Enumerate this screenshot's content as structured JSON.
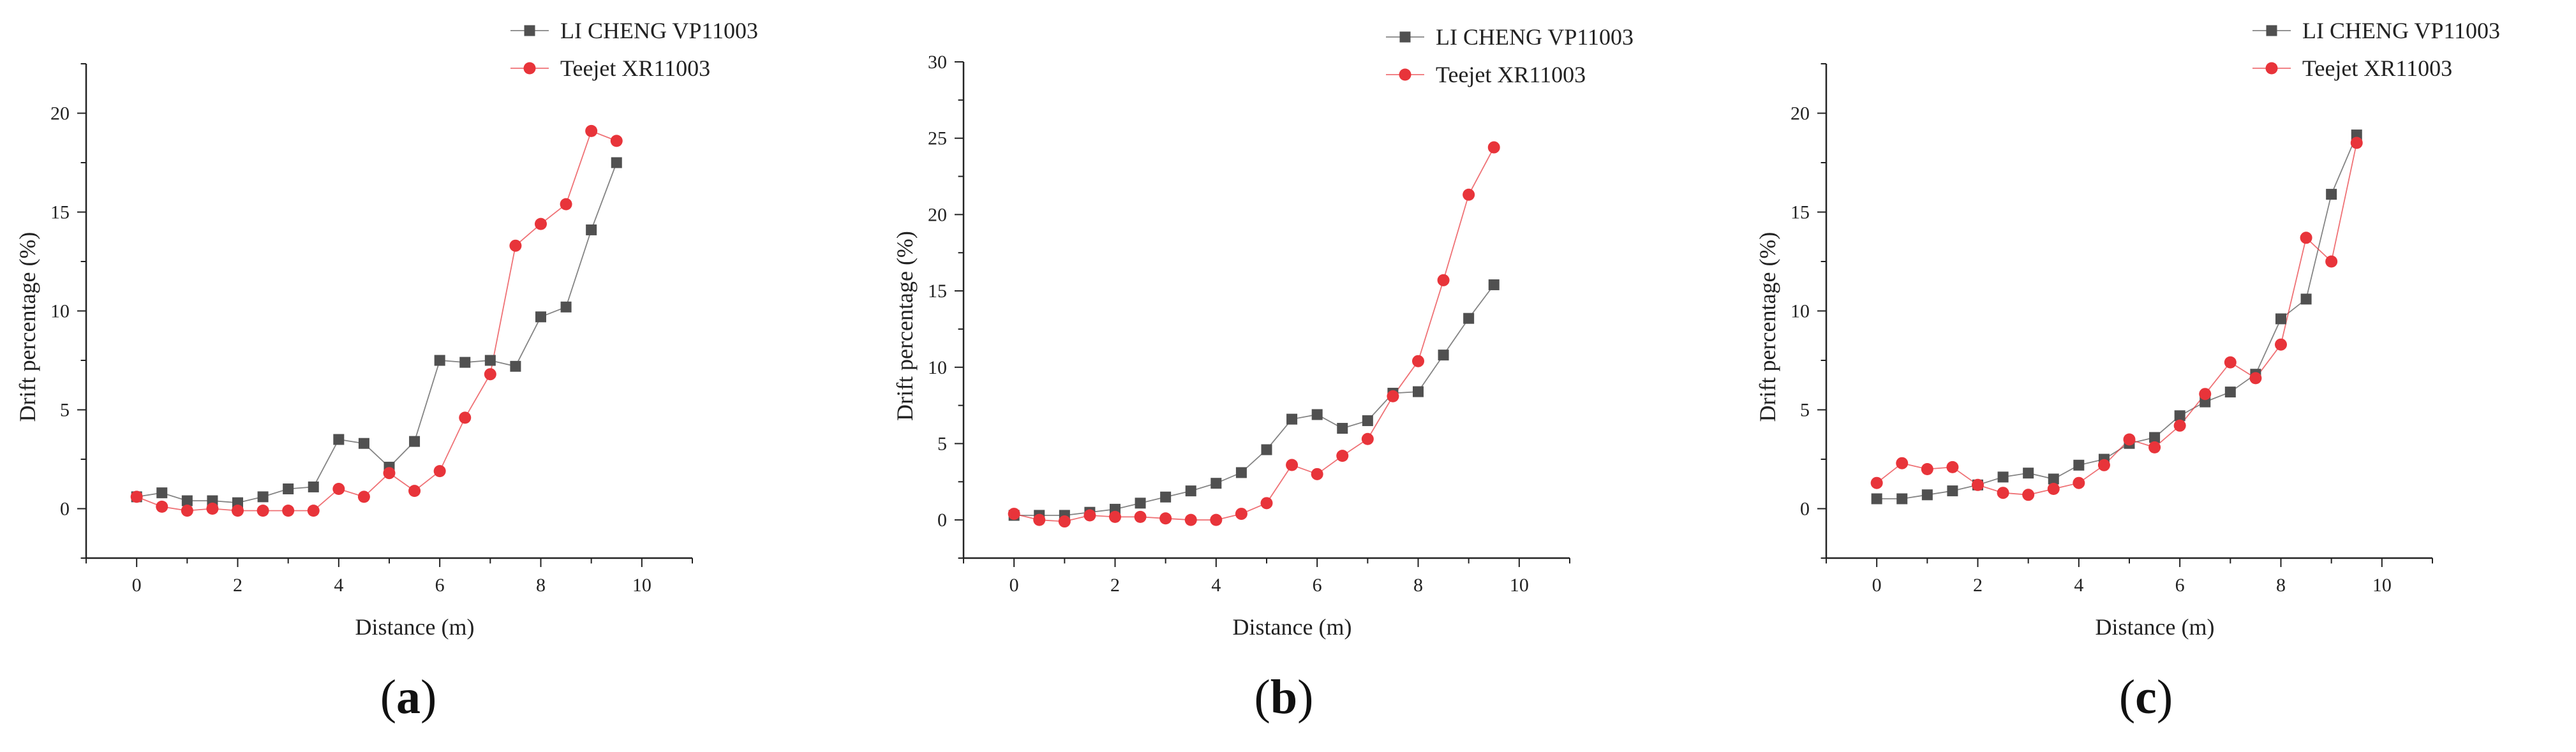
{
  "figure": {
    "background": "#ffffff"
  },
  "chart_data": [
    {
      "type": "line",
      "panel_label": "a",
      "xlabel": "Distance (m)",
      "ylabel": "Drift percentage (%)",
      "xlim": [
        -1,
        11
      ],
      "ylim": [
        -2.5,
        22.5
      ],
      "xticks": [
        0,
        2,
        4,
        6,
        8,
        10
      ],
      "yticks": [
        0,
        5,
        10,
        15,
        20
      ],
      "grid": false,
      "legend": "top-right",
      "x": [
        0,
        0.5,
        1,
        1.5,
        2,
        2.5,
        3,
        3.5,
        4,
        4.5,
        5,
        5.5,
        6,
        6.5,
        7,
        7.5,
        8,
        8.5,
        9,
        9.5
      ],
      "series": [
        {
          "name": "LI CHENG VP11003",
          "color": "#505050",
          "marker": "square",
          "values": [
            0.6,
            0.8,
            0.4,
            0.4,
            0.3,
            0.6,
            1.0,
            1.1,
            3.5,
            3.3,
            2.1,
            3.4,
            7.5,
            7.4,
            7.5,
            7.2,
            9.7,
            10.2,
            14.1,
            17.5
          ]
        },
        {
          "name": "Teejet XR11003",
          "color": "#e8343a",
          "marker": "circle",
          "values": [
            0.6,
            0.1,
            -0.1,
            0.0,
            -0.1,
            -0.1,
            -0.1,
            -0.1,
            1.0,
            0.6,
            1.8,
            0.9,
            1.9,
            4.6,
            6.8,
            13.3,
            14.4,
            15.4,
            19.1,
            18.6
          ]
        }
      ]
    },
    {
      "type": "line",
      "panel_label": "b",
      "xlabel": "Distance (m)",
      "ylabel": "Drift percentage (%)",
      "xlim": [
        -1,
        11
      ],
      "ylim": [
        -2.5,
        30
      ],
      "xticks": [
        0,
        2,
        4,
        6,
        8,
        10
      ],
      "yticks": [
        0,
        5,
        10,
        15,
        20,
        25,
        30
      ],
      "grid": false,
      "legend": "top-right",
      "x": [
        0,
        0.5,
        1,
        1.5,
        2,
        2.5,
        3,
        3.5,
        4,
        4.5,
        5,
        5.5,
        6,
        6.5,
        7,
        7.5,
        8,
        8.5,
        9,
        9.5
      ],
      "series": [
        {
          "name": "LI CHENG VP11003",
          "color": "#505050",
          "marker": "square",
          "values": [
            0.3,
            0.3,
            0.3,
            0.5,
            0.7,
            1.1,
            1.5,
            1.9,
            2.4,
            3.1,
            4.6,
            6.6,
            6.9,
            6.0,
            6.5,
            8.3,
            8.4,
            10.8,
            13.2,
            15.4
          ]
        },
        {
          "name": "Teejet XR11003",
          "color": "#e8343a",
          "marker": "circle",
          "values": [
            0.4,
            0.0,
            -0.1,
            0.3,
            0.2,
            0.2,
            0.1,
            0.0,
            0.0,
            0.4,
            1.1,
            3.6,
            3.0,
            4.2,
            5.3,
            8.1,
            10.4,
            15.7,
            21.3,
            24.4
          ]
        }
      ]
    },
    {
      "type": "line",
      "panel_label": "c",
      "xlabel": "Distance (m)",
      "ylabel": "Drift percentage (%)",
      "xlim": [
        -1,
        11
      ],
      "ylim": [
        -2.5,
        22.5
      ],
      "xticks": [
        0,
        2,
        4,
        6,
        8,
        10
      ],
      "yticks": [
        0,
        5,
        10,
        15,
        20
      ],
      "grid": false,
      "legend": "top-right",
      "x": [
        0,
        0.5,
        1,
        1.5,
        2,
        2.5,
        3,
        3.5,
        4,
        4.5,
        5,
        5.5,
        6,
        6.5,
        7,
        7.5,
        8,
        8.5,
        9,
        9.5
      ],
      "series": [
        {
          "name": "LI CHENG VP11003",
          "color": "#505050",
          "marker": "square",
          "values": [
            0.5,
            0.5,
            0.7,
            0.9,
            1.2,
            1.6,
            1.8,
            1.5,
            2.2,
            2.5,
            3.3,
            3.6,
            4.7,
            5.4,
            5.9,
            6.8,
            9.6,
            10.6,
            15.9,
            18.9
          ]
        },
        {
          "name": "Teejet XR11003",
          "color": "#e8343a",
          "marker": "circle",
          "values": [
            1.3,
            2.3,
            2.0,
            2.1,
            1.2,
            0.8,
            0.7,
            1.0,
            1.3,
            2.2,
            3.5,
            3.1,
            4.2,
            5.8,
            7.4,
            6.6,
            8.3,
            13.7,
            12.5,
            18.5
          ]
        }
      ]
    }
  ]
}
